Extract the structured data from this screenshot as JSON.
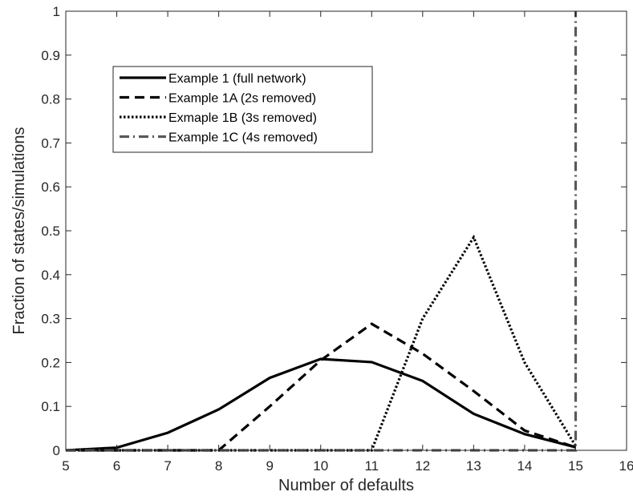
{
  "chart_data": {
    "type": "line",
    "title": "",
    "xlabel": "Number of defaults",
    "ylabel": "Fraction of states/simulations",
    "xlim": [
      5,
      16
    ],
    "ylim": [
      0,
      1
    ],
    "xticks": [
      5,
      6,
      7,
      8,
      9,
      10,
      11,
      12,
      13,
      14,
      15,
      16
    ],
    "yticks": [
      0,
      0.1,
      0.2,
      0.3,
      0.4,
      0.5,
      0.6,
      0.7,
      0.8,
      0.9,
      1
    ],
    "ytick_labels": [
      "0",
      "0.1",
      "0.2",
      "0.3",
      "0.4",
      "0.5",
      "0.6",
      "0.7",
      "0.8",
      "0.9",
      "1"
    ],
    "grid": false,
    "legend_position": "top-left",
    "series": [
      {
        "name": "Example 1 (full network)",
        "style": "solid",
        "color": "#000000",
        "x": [
          5,
          6,
          7,
          8,
          9,
          10,
          11,
          12,
          13,
          14,
          15
        ],
        "y": [
          0,
          0.006,
          0.04,
          0.093,
          0.165,
          0.208,
          0.201,
          0.158,
          0.083,
          0.037,
          0.007
        ]
      },
      {
        "name": "Example 1A (2s removed)",
        "style": "dashed",
        "color": "#000000",
        "x": [
          5,
          6,
          7,
          8,
          9,
          10,
          11,
          12,
          13,
          14,
          15
        ],
        "y": [
          0,
          0,
          0,
          0,
          0.1,
          0.205,
          0.288,
          0.22,
          0.135,
          0.045,
          0.007
        ]
      },
      {
        "name": "Exmaple 1B (3s removed)",
        "style": "dotted",
        "color": "#000000",
        "x": [
          5,
          6,
          7,
          8,
          9,
          10,
          11,
          12,
          13,
          14,
          15
        ],
        "y": [
          0,
          0,
          0,
          0,
          0,
          0,
          0,
          0.3,
          0.485,
          0.2,
          0.01
        ]
      },
      {
        "name": "Example 1C (4s removed)",
        "style": "dashdot",
        "color": "#595959",
        "x": [
          5,
          15,
          15
        ],
        "y": [
          0,
          0,
          1
        ]
      }
    ]
  }
}
